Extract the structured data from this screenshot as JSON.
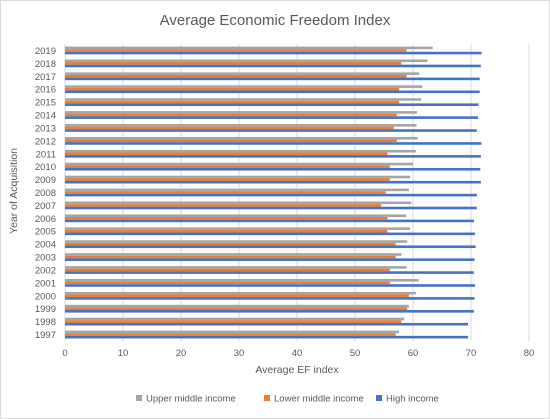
{
  "chart_data": {
    "type": "bar",
    "orientation": "horizontal",
    "title": "Average Economic Freedom Index",
    "xlabel": "Average EF index",
    "ylabel": "Year of Acquisition",
    "xlim": [
      0,
      80
    ],
    "x_ticks": [
      "0",
      "10",
      "20",
      "30",
      "40",
      "50",
      "60",
      "70",
      "80"
    ],
    "grid": true,
    "legend_position": "bottom",
    "categories": [
      "1997",
      "1998",
      "1999",
      "2000",
      "2001",
      "2002",
      "2003",
      "2004",
      "2005",
      "2006",
      "2007",
      "2008",
      "2009",
      "2010",
      "2011",
      "2012",
      "2013",
      "2014",
      "2015",
      "2016",
      "2017",
      "2018",
      "2019"
    ],
    "series": [
      {
        "name": "Upper middle income",
        "color": "#a5a5a5",
        "values": [
          57.6,
          58.5,
          59.3,
          60.5,
          61.0,
          58.9,
          58.0,
          59.0,
          59.5,
          58.8,
          59.7,
          59.3,
          59.5,
          60.0,
          60.5,
          60.8,
          60.6,
          60.7,
          61.4,
          61.6,
          61.1,
          62.5,
          63.4
        ]
      },
      {
        "name": "Lower middle income",
        "color": "#ed7d31",
        "values": [
          57.0,
          58.0,
          59.0,
          59.3,
          56.0,
          56.0,
          57.0,
          57.0,
          55.6,
          55.6,
          54.5,
          55.3,
          56.0,
          56.0,
          55.6,
          57.2,
          56.7,
          57.2,
          57.6,
          57.6,
          58.9,
          58.0,
          58.9
        ]
      },
      {
        "name": "High income",
        "color": "#4472c4",
        "values": [
          69.5,
          69.5,
          70.5,
          70.6,
          70.7,
          70.5,
          70.6,
          70.8,
          70.7,
          70.5,
          71.0,
          71.0,
          71.7,
          71.6,
          71.7,
          71.8,
          71.0,
          71.2,
          71.3,
          71.5,
          71.5,
          71.7,
          71.8
        ]
      }
    ]
  }
}
